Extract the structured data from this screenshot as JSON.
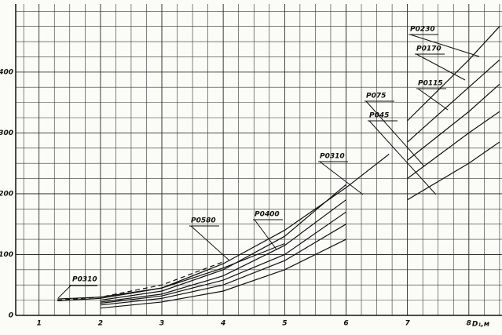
{
  "chart_data": {
    "type": "line",
    "x_label": "D₁,м",
    "x": [
      1.3,
      2,
      3,
      4,
      5,
      6,
      6.7,
      7,
      8,
      8.5
    ],
    "series": [
      {
        "name": "P0230",
        "color": "#111111",
        "dashed": false,
        "values": [
          null,
          25,
          40,
          75,
          130,
          215,
          null,
          320,
          420,
          475
        ]
      },
      {
        "name": "P0170",
        "color": "#111111",
        "dashed": false,
        "values": [
          null,
          22,
          35,
          65,
          115,
          190,
          null,
          285,
          375,
          420
        ]
      },
      {
        "name": "P0115",
        "color": "#111111",
        "dashed": false,
        "values": [
          null,
          20,
          32,
          58,
          100,
          170,
          null,
          255,
          335,
          380
        ]
      },
      {
        "name": "P075",
        "color": "#111111",
        "dashed": false,
        "values": [
          null,
          17,
          28,
          50,
          90,
          150,
          null,
          225,
          300,
          335
        ]
      },
      {
        "name": "P045",
        "color": "#111111",
        "dashed": false,
        "values": [
          null,
          12,
          22,
          40,
          75,
          125,
          null,
          190,
          250,
          285
        ]
      },
      {
        "name": "P0310",
        "color": "#111111",
        "dashed": false,
        "values": [
          27,
          30,
          45,
          85,
          140,
          210,
          265,
          null,
          null,
          null
        ]
      },
      {
        "name": "P0580",
        "color": "#111111",
        "dashed": true,
        "values": [
          25,
          30,
          50,
          88,
          null,
          null,
          null,
          null,
          null,
          null
        ]
      },
      {
        "name": "P0400",
        "color": "#111111",
        "dashed": false,
        "values": [
          24,
          28,
          45,
          78,
          118,
          null,
          null,
          null,
          null,
          null
        ]
      }
    ],
    "annotations": [
      "P0310"
    ],
    "xlim": [
      0.62,
      8.54
    ],
    "ylim": [
      0,
      512
    ],
    "xticks": [
      1,
      2,
      3,
      4,
      5,
      6,
      7,
      8
    ],
    "yticks": [
      0,
      100,
      200,
      300,
      400
    ],
    "grid": true
  }
}
